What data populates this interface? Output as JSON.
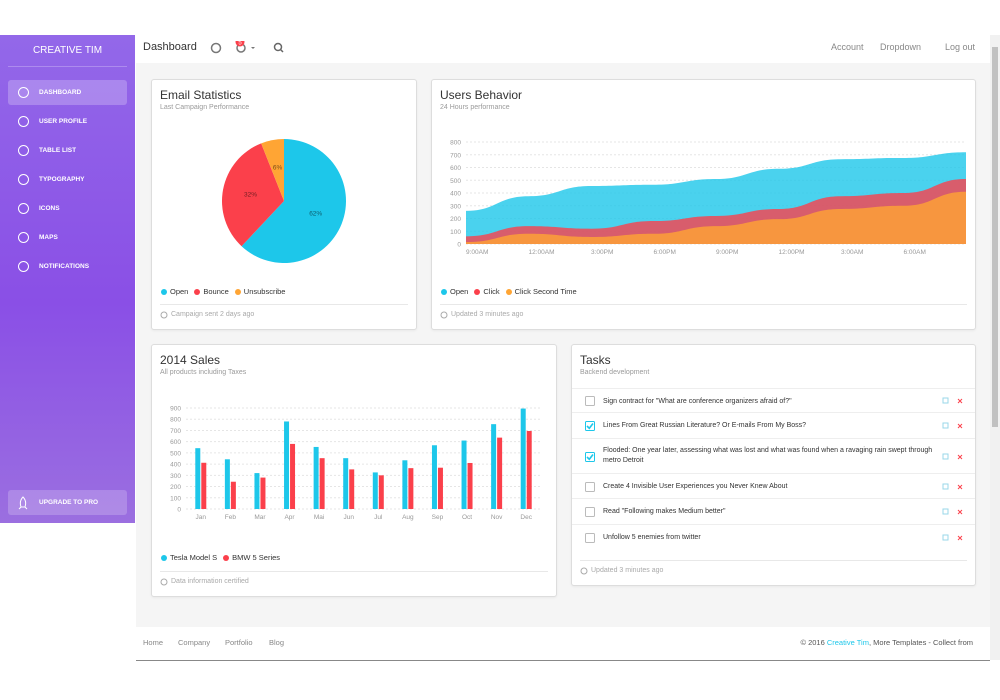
{
  "sidebar": {
    "brand": "CREATIVE TIM",
    "items": [
      "DASHBOARD",
      "USER PROFILE",
      "TABLE LIST",
      "TYPOGRAPHY",
      "ICONS",
      "MAPS",
      "NOTIFICATIONS"
    ],
    "upgrade": "UPGRADE TO PRO"
  },
  "navbar": {
    "title": "Dashboard",
    "notifications": 5,
    "links": [
      "Account",
      "Dropdown",
      "Log out"
    ]
  },
  "chart_data": [
    {
      "type": "pie",
      "title": "Email Statistics",
      "subtitle": "Last Campaign Performance",
      "categories": [
        "Open",
        "Bounce",
        "Unsubscribe"
      ],
      "values": [
        62,
        32,
        6
      ],
      "value_labels": [
        "62%",
        "32%",
        "6%"
      ],
      "colors": [
        "#1DC7EA",
        "#FB404B",
        "#FFA534"
      ],
      "footer": "Campaign sent 2 days ago"
    },
    {
      "type": "line",
      "area": true,
      "title": "Users Behavior",
      "subtitle": "24 Hours performance",
      "categories": [
        "9:00AM",
        "12:00AM",
        "3:00PM",
        "6:00PM",
        "9:00PM",
        "12:00PM",
        "3:00AM",
        "6:00AM",
        null
      ],
      "series": [
        {
          "name": "Open",
          "color": "#1DC7EA",
          "values": [
            260,
            375,
            455,
            465,
            510,
            590,
            665,
            675,
            720
          ]
        },
        {
          "name": "Click",
          "color": "#FB404B",
          "values": [
            60,
            140,
            120,
            180,
            220,
            275,
            375,
            400,
            510
          ]
        },
        {
          "name": "Click Second Time",
          "color": "#FFA534",
          "values": [
            15,
            80,
            55,
            80,
            140,
            195,
            275,
            300,
            410
          ]
        }
      ],
      "ylim": [
        0,
        800
      ],
      "yticks": [
        0,
        100,
        200,
        300,
        400,
        500,
        600,
        700,
        800
      ],
      "grid": true,
      "footer": "Updated 3 minutes ago"
    },
    {
      "type": "bar",
      "title": "2014 Sales",
      "subtitle": "All products including Taxes",
      "categories": [
        "Jan",
        "Feb",
        "Mar",
        "Apr",
        "Mai",
        "Jun",
        "Jul",
        "Aug",
        "Sep",
        "Oct",
        "Nov",
        "Dec"
      ],
      "series": [
        {
          "name": "Tesla Model S",
          "color": "#1DC7EA",
          "values": [
            542,
            443,
            320,
            780,
            553,
            453,
            326,
            434,
            568,
            610,
            756,
            895
          ]
        },
        {
          "name": "BMW 5 Series",
          "color": "#FB404B",
          "values": [
            412,
            243,
            280,
            580,
            453,
            353,
            300,
            364,
            368,
            410,
            636,
            695
          ]
        }
      ],
      "ylim": [
        0,
        900
      ],
      "yticks": [
        0,
        100,
        200,
        300,
        400,
        500,
        600,
        700,
        800,
        900
      ],
      "grid": true,
      "footer": "Data information certified"
    }
  ],
  "tasks": {
    "title": "Tasks",
    "subtitle": "Backend development",
    "items": [
      {
        "text": "Sign contract for \"What are conference organizers afraid of?\"",
        "checked": false
      },
      {
        "text": "Lines From Great Russian Literature? Or E-mails From My Boss?",
        "checked": true
      },
      {
        "text": "Flooded: One year later, assessing what was lost and what was found when a ravaging rain swept through metro Detroit",
        "checked": true
      },
      {
        "text": "Create 4 Invisible User Experiences you Never Knew About",
        "checked": false
      },
      {
        "text": "Read \"Following makes Medium better\"",
        "checked": false
      },
      {
        "text": "Unfollow 5 enemies from twitter",
        "checked": false
      }
    ],
    "footer": "Updated 3 minutes ago"
  },
  "footer": {
    "links": [
      "Home",
      "Company",
      "Portfolio",
      "Blog"
    ],
    "copyright": "© 2016 ",
    "author": "Creative Tim",
    "rest": ", More Templates - Collect from"
  }
}
